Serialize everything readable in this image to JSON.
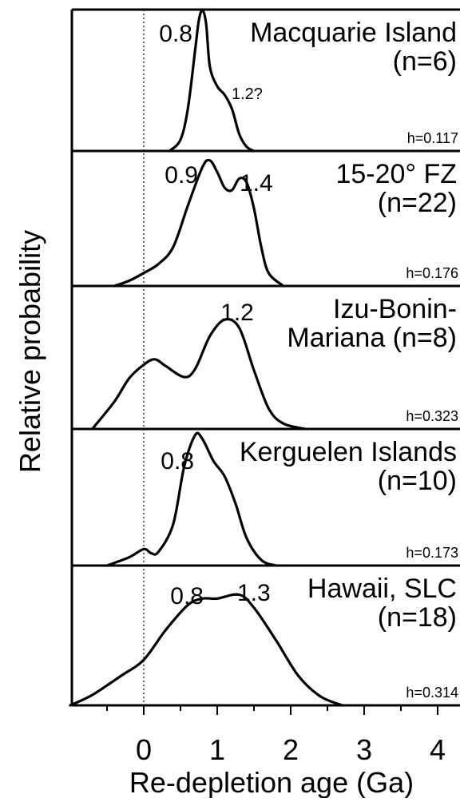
{
  "chart_data": {
    "type": "area",
    "xlabel": "Re-depletion age (Ga)",
    "ylabel": "Relative probability",
    "xlim": [
      -1.0,
      4.35
    ],
    "xticks": [
      0,
      1,
      2,
      3,
      4
    ],
    "xtick_labels": [
      "0",
      "1",
      "2",
      "3",
      "4"
    ],
    "reference_line_x": 0,
    "reference_line_style": "dotted",
    "grid": false,
    "legend": "none",
    "panels": [
      {
        "title_lines": [
          "Macquarie Island",
          "(n=6)"
        ],
        "bandwidth": "h=0.117",
        "peaks": [
          {
            "x": 0.8,
            "label": "0.8",
            "size": "large"
          },
          {
            "x": 1.2,
            "label": "1.2?",
            "size": "small"
          }
        ],
        "curve_x": [
          0.35,
          0.5,
          0.6,
          0.7,
          0.75,
          0.8,
          0.85,
          0.9,
          1.0,
          1.1,
          1.2,
          1.3,
          1.4,
          1.5
        ],
        "curve_y": [
          0.0,
          0.08,
          0.3,
          0.72,
          0.93,
          1.0,
          0.9,
          0.6,
          0.46,
          0.4,
          0.3,
          0.12,
          0.03,
          0.0
        ]
      },
      {
        "title_lines": [
          "15-20° FZ",
          "(n=22)"
        ],
        "bandwidth": "h=0.176",
        "peaks": [
          {
            "x": 0.9,
            "label": "0.9",
            "size": "large"
          },
          {
            "x": 1.4,
            "label": "1.4",
            "size": "large"
          }
        ],
        "curve_x": [
          -0.4,
          -0.2,
          0.0,
          0.2,
          0.4,
          0.6,
          0.8,
          0.9,
          1.0,
          1.1,
          1.2,
          1.3,
          1.4,
          1.5,
          1.6,
          1.7,
          1.9
        ],
        "curve_y": [
          0.0,
          0.04,
          0.1,
          0.17,
          0.3,
          0.62,
          0.92,
          0.97,
          0.88,
          0.76,
          0.74,
          0.83,
          0.8,
          0.6,
          0.3,
          0.1,
          0.0
        ]
      },
      {
        "title_lines": [
          "Izu-Bonin-",
          "Mariana (n=8)"
        ],
        "bandwidth": "h=0.323",
        "peaks": [
          {
            "x": 1.2,
            "label": "1.2",
            "size": "large"
          }
        ],
        "curve_x": [
          -0.7,
          -0.4,
          -0.2,
          0.0,
          0.15,
          0.3,
          0.55,
          0.7,
          0.9,
          1.1,
          1.3,
          1.5,
          1.7,
          1.9,
          2.2
        ],
        "curve_y": [
          0.0,
          0.2,
          0.37,
          0.47,
          0.51,
          0.46,
          0.38,
          0.44,
          0.68,
          0.8,
          0.74,
          0.43,
          0.15,
          0.04,
          0.0
        ]
      },
      {
        "title_lines": [
          "Kerguelen Islands",
          "(n=10)"
        ],
        "bandwidth": "h=0.173",
        "peaks": [
          {
            "x": 0.8,
            "label": "0.8",
            "size": "large"
          }
        ],
        "curve_x": [
          -0.5,
          -0.2,
          0.0,
          0.1,
          0.2,
          0.4,
          0.55,
          0.7,
          0.8,
          0.95,
          1.1,
          1.25,
          1.4,
          1.6,
          1.8
        ],
        "curve_y": [
          0.0,
          0.06,
          0.12,
          0.09,
          0.1,
          0.3,
          0.72,
          0.95,
          0.92,
          0.76,
          0.65,
          0.45,
          0.2,
          0.04,
          0.0
        ]
      },
      {
        "title_lines": [
          "Hawaii, SLC",
          "(n=18)"
        ],
        "bandwidth": "h=0.314",
        "peaks": [
          {
            "x": 0.8,
            "label": "0.8",
            "size": "large"
          },
          {
            "x": 1.3,
            "label": "1.3",
            "size": "large"
          }
        ],
        "curve_x": [
          -1.0,
          -0.7,
          -0.3,
          0.0,
          0.3,
          0.6,
          0.8,
          1.0,
          1.3,
          1.5,
          1.8,
          2.1,
          2.4,
          2.7
        ],
        "curve_y": [
          0.0,
          0.08,
          0.23,
          0.35,
          0.58,
          0.77,
          0.82,
          0.82,
          0.85,
          0.75,
          0.5,
          0.23,
          0.07,
          0.0
        ]
      }
    ]
  }
}
